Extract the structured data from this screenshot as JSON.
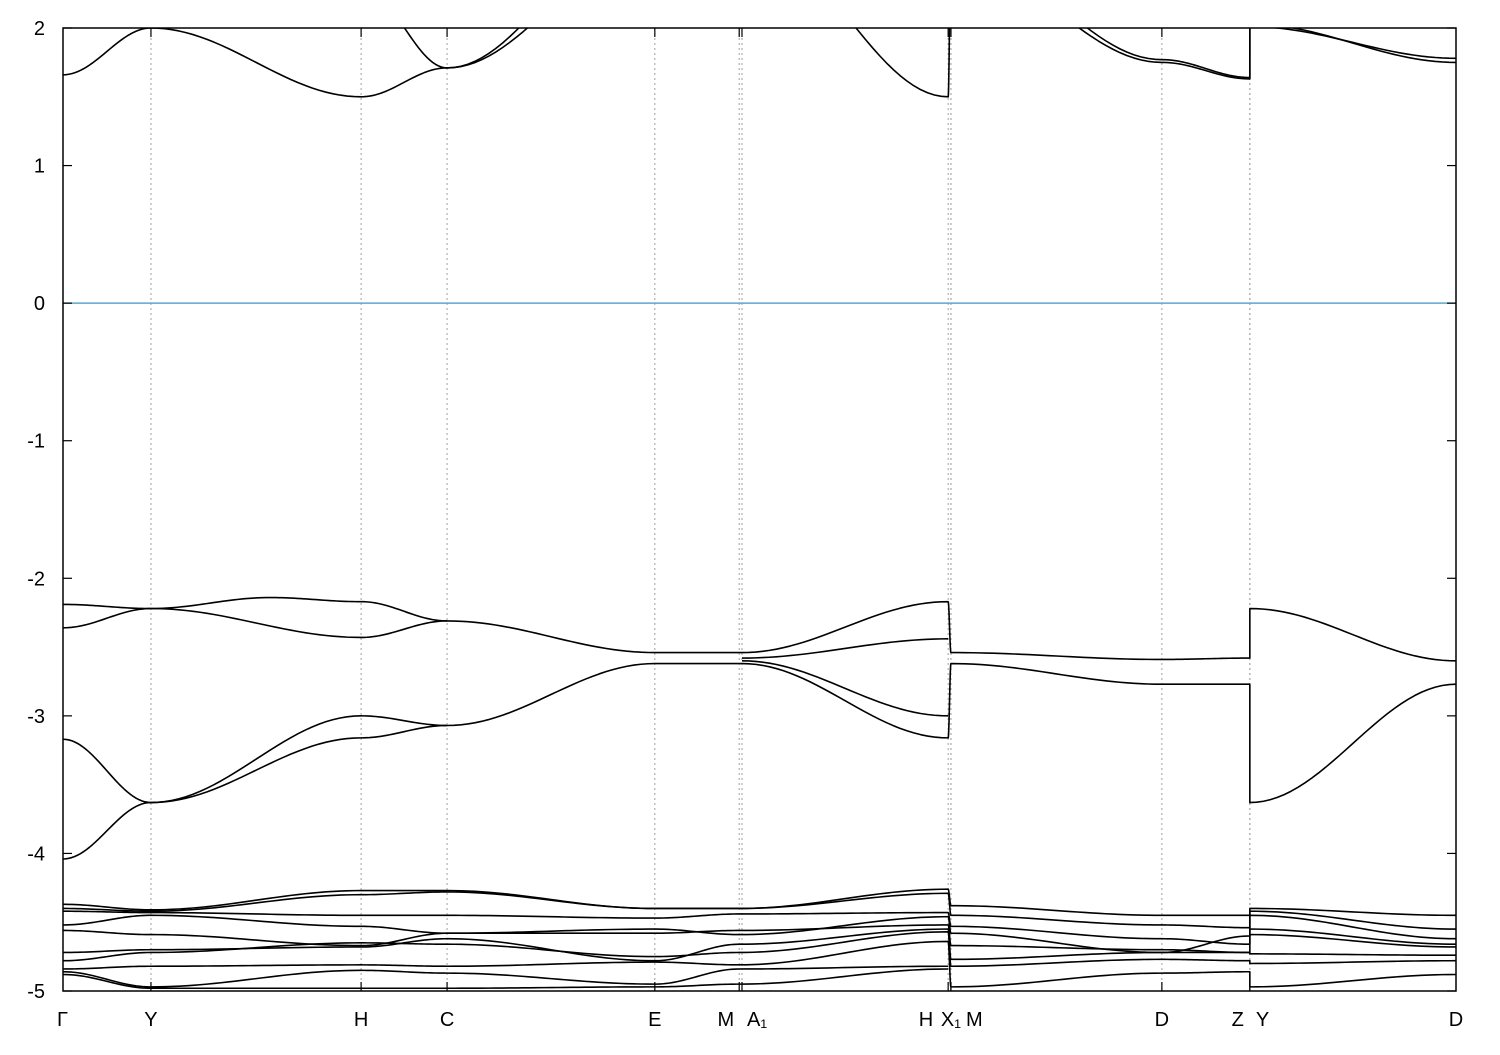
{
  "chart_data": {
    "type": "line",
    "title": "",
    "xlabel": "",
    "ylabel": "",
    "xlim": [
      0,
      3.5
    ],
    "ylim": [
      -5,
      2
    ],
    "yticks": [
      -5,
      -4,
      -3,
      -2,
      -1,
      0,
      1,
      2
    ],
    "grid": "vertical dashed lines at high-symmetry points",
    "colors": {
      "bands": "#000000",
      "fermi_level": "#56a8d8",
      "grid": "#a0a0a0"
    },
    "xticks": [
      {
        "label": "Γ",
        "k": 0
      },
      {
        "label": "Y",
        "k": 0.221
      },
      {
        "label": "H",
        "k": 0.749
      },
      {
        "label": "C",
        "k": 0.965
      },
      {
        "label": "E",
        "k": 1.487
      },
      {
        "label": "M",
        "k": 1.699
      },
      {
        "label": "A₁",
        "k": 1.706
      },
      {
        "label": "H",
        "k": 2.224
      },
      {
        "label": "X₁",
        "k": 2.231
      },
      {
        "label": "M",
        "k": 2.231
      },
      {
        "label": "D",
        "k": 2.761
      },
      {
        "label": "Z",
        "k": 2.982
      },
      {
        "label": "Y",
        "k": 2.982
      },
      {
        "label": "D",
        "k": 3.5
      }
    ],
    "fermi_level": 0,
    "bands": [
      [
        [
          0,
          1.66
        ],
        [
          0.221,
          2.0
        ],
        [
          0.749,
          1.5
        ],
        [
          0.965,
          1.71
        ],
        [
          1.487,
          2.6
        ]
      ],
      [
        [
          0,
          2.3
        ],
        [
          0.221,
          2.05
        ],
        [
          0.749,
          2.3
        ],
        [
          0.965,
          1.71
        ],
        [
          1.487,
          2.8
        ]
      ],
      [
        [
          1.706,
          2.7
        ],
        [
          2.224,
          1.5
        ],
        [
          2.231,
          2.6
        ]
      ],
      [
        [
          2.231,
          2.6
        ],
        [
          2.761,
          1.77
        ],
        [
          2.982,
          1.64
        ],
        [
          2.982,
          2.01
        ],
        [
          3.5,
          1.78
        ]
      ],
      [
        [
          2.231,
          2.5
        ],
        [
          2.761,
          1.75
        ],
        [
          2.982,
          1.63
        ],
        [
          2.982,
          2.03
        ],
        [
          3.5,
          1.75
        ]
      ],
      [
        [
          0,
          -2.19
        ],
        [
          0.221,
          -2.22
        ],
        [
          0.52,
          -2.14
        ],
        [
          0.749,
          -2.17
        ],
        [
          0.965,
          -2.31
        ],
        [
          1.487,
          -2.54
        ],
        [
          1.706,
          -2.54
        ]
      ],
      [
        [
          0,
          -2.36
        ],
        [
          0.221,
          -2.22
        ],
        [
          0.749,
          -2.43
        ],
        [
          0.965,
          -2.31
        ]
      ],
      [
        [
          0,
          -3.17
        ],
        [
          0.221,
          -3.63
        ],
        [
          0.749,
          -3.0
        ],
        [
          0.965,
          -3.07
        ],
        [
          1.487,
          -2.62
        ],
        [
          1.706,
          -2.62
        ]
      ],
      [
        [
          0,
          -4.04
        ],
        [
          0.221,
          -3.63
        ],
        [
          0.749,
          -3.16
        ],
        [
          0.965,
          -3.07
        ]
      ],
      [
        [
          1.706,
          -2.54
        ],
        [
          2.224,
          -2.17
        ],
        [
          2.231,
          -2.54
        ],
        [
          2.761,
          -2.59
        ],
        [
          2.982,
          -2.58
        ],
        [
          2.982,
          -2.22
        ],
        [
          3.5,
          -2.6
        ]
      ],
      [
        [
          1.706,
          -2.62
        ],
        [
          2.224,
          -3.16
        ],
        [
          2.231,
          -2.62
        ],
        [
          2.761,
          -2.77
        ],
        [
          2.982,
          -2.77
        ],
        [
          2.982,
          -3.63
        ],
        [
          3.5,
          -2.77
        ]
      ],
      [
        [
          1.706,
          -2.58
        ],
        [
          2.224,
          -2.44
        ]
      ],
      [
        [
          1.706,
          -2.6
        ],
        [
          2.224,
          -3.0
        ]
      ],
      [
        [
          0,
          -4.37
        ],
        [
          0.221,
          -4.41
        ],
        [
          0.749,
          -4.27
        ],
        [
          0.965,
          -4.27
        ],
        [
          1.487,
          -4.4
        ],
        [
          1.699,
          -4.4
        ],
        [
          2.224,
          -4.26
        ],
        [
          2.231,
          -4.38
        ],
        [
          2.761,
          -4.45
        ],
        [
          2.982,
          -4.45
        ],
        [
          2.982,
          -4.4
        ],
        [
          3.5,
          -4.45
        ]
      ],
      [
        [
          0,
          -4.4
        ],
        [
          0.221,
          -4.42
        ],
        [
          0.749,
          -4.3
        ],
        [
          0.965,
          -4.28
        ],
        [
          1.487,
          -4.4
        ],
        [
          1.699,
          -4.4
        ],
        [
          2.224,
          -4.29
        ],
        [
          2.231,
          -4.45
        ],
        [
          2.761,
          -4.52
        ],
        [
          2.982,
          -4.54
        ],
        [
          2.982,
          -4.42
        ],
        [
          3.5,
          -4.55
        ]
      ],
      [
        [
          0,
          -4.42
        ],
        [
          0.221,
          -4.43
        ],
        [
          0.749,
          -4.45
        ],
        [
          0.965,
          -4.45
        ],
        [
          1.487,
          -4.47
        ],
        [
          1.699,
          -4.44
        ],
        [
          2.224,
          -4.43
        ],
        [
          2.231,
          -4.53
        ],
        [
          2.761,
          -4.62
        ],
        [
          2.982,
          -4.66
        ],
        [
          2.982,
          -4.45
        ],
        [
          3.5,
          -4.62
        ]
      ],
      [
        [
          0,
          -4.52
        ],
        [
          0.221,
          -4.45
        ],
        [
          0.749,
          -4.53
        ],
        [
          0.965,
          -4.58
        ],
        [
          1.487,
          -4.55
        ],
        [
          1.699,
          -4.59
        ],
        [
          2.224,
          -4.46
        ],
        [
          2.231,
          -4.58
        ],
        [
          2.761,
          -4.72
        ],
        [
          2.982,
          -4.6
        ],
        [
          2.982,
          -4.55
        ],
        [
          3.5,
          -4.66
        ]
      ],
      [
        [
          0,
          -4.56
        ],
        [
          0.221,
          -4.59
        ],
        [
          0.749,
          -4.67
        ],
        [
          0.965,
          -4.58
        ],
        [
          1.487,
          -4.58
        ],
        [
          1.699,
          -4.56
        ],
        [
          2.224,
          -4.52
        ],
        [
          2.231,
          -4.67
        ],
        [
          2.761,
          -4.7
        ],
        [
          2.982,
          -4.72
        ],
        [
          2.982,
          -4.59
        ],
        [
          3.5,
          -4.68
        ]
      ],
      [
        [
          0,
          -4.72
        ],
        [
          0.221,
          -4.7
        ],
        [
          0.749,
          -4.68
        ],
        [
          0.965,
          -4.62
        ],
        [
          1.487,
          -4.78
        ],
        [
          1.699,
          -4.66
        ],
        [
          2.224,
          -4.55
        ],
        [
          2.231,
          -4.77
        ],
        [
          2.761,
          -4.72
        ],
        [
          2.982,
          -4.72
        ],
        [
          2.982,
          -4.73
        ],
        [
          3.5,
          -4.74
        ]
      ],
      [
        [
          0,
          -4.78
        ],
        [
          0.221,
          -4.72
        ],
        [
          0.749,
          -4.65
        ],
        [
          0.965,
          -4.66
        ],
        [
          1.487,
          -4.75
        ],
        [
          1.699,
          -4.72
        ],
        [
          2.224,
          -4.57
        ],
        [
          2.231,
          -4.82
        ],
        [
          2.761,
          -4.77
        ],
        [
          2.982,
          -4.78
        ],
        [
          2.982,
          -4.8
        ],
        [
          3.5,
          -4.78
        ]
      ],
      [
        [
          0,
          -4.84
        ],
        [
          0.221,
          -4.82
        ],
        [
          0.749,
          -4.81
        ],
        [
          0.965,
          -4.82
        ],
        [
          1.487,
          -4.79
        ],
        [
          1.699,
          -4.81
        ],
        [
          2.224,
          -4.64
        ],
        [
          2.231,
          -4.97
        ],
        [
          2.761,
          -4.87
        ],
        [
          2.982,
          -4.86
        ],
        [
          2.982,
          -4.97
        ],
        [
          3.5,
          -4.88
        ]
      ],
      [
        [
          0,
          -4.86
        ],
        [
          0.221,
          -4.97
        ],
        [
          0.749,
          -4.85
        ],
        [
          0.965,
          -4.87
        ],
        [
          1.487,
          -4.95
        ],
        [
          1.699,
          -4.84
        ],
        [
          2.224,
          -4.82
        ]
      ],
      [
        [
          0,
          -4.88
        ],
        [
          0.221,
          -4.98
        ],
        [
          0.749,
          -4.98
        ],
        [
          0.965,
          -4.98
        ],
        [
          1.487,
          -4.97
        ],
        [
          1.699,
          -4.95
        ],
        [
          2.224,
          -4.84
        ]
      ]
    ]
  }
}
